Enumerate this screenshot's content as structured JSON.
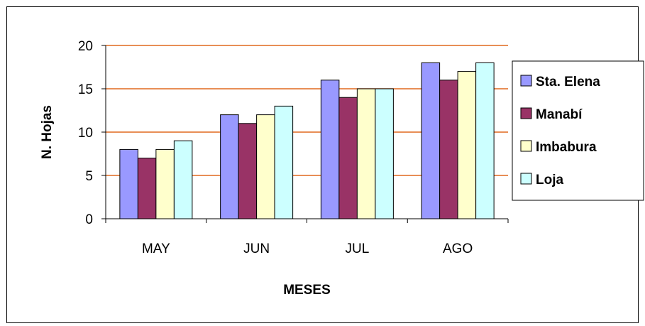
{
  "colors": {
    "gridline": "#e0691f",
    "axis": "#000000",
    "bar_stroke": "#000000"
  },
  "chart_data": {
    "type": "bar",
    "title": "",
    "xlabel": "MESES",
    "ylabel": "N. Hojas",
    "categories": [
      "MAY",
      "JUN",
      "JUL",
      "AGO"
    ],
    "ylim": [
      0,
      20
    ],
    "yticks": [
      0,
      5,
      10,
      15,
      20
    ],
    "grid": true,
    "legend_position": "right",
    "series": [
      {
        "name": "Sta. Elena",
        "color": "#9999ff",
        "values": [
          8,
          12,
          16,
          18
        ]
      },
      {
        "name": "Manabí",
        "color": "#993366",
        "values": [
          7,
          11,
          14,
          16
        ]
      },
      {
        "name": "Imbabura",
        "color": "#ffffcc",
        "values": [
          8,
          12,
          15,
          17
        ]
      },
      {
        "name": "Loja",
        "color": "#ccffff",
        "values": [
          9,
          13,
          15,
          18
        ]
      }
    ]
  }
}
